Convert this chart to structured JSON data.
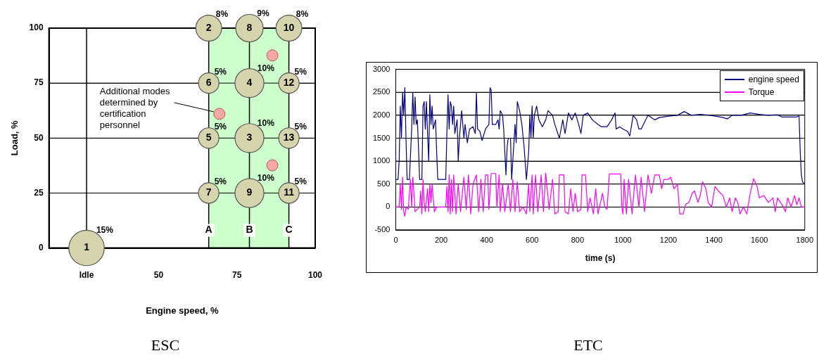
{
  "chart_data": [
    {
      "type": "bubble",
      "title": "ESC",
      "xlabel": "Engine speed, %",
      "ylabel": "Load, %",
      "xlim": [
        15,
        100
      ],
      "xticks": [
        {
          "value": 27,
          "label": "Idle"
        },
        50,
        75,
        100
      ],
      "ylim": [
        0,
        100
      ],
      "yticks": [
        0,
        25,
        50,
        75,
        100
      ],
      "grid": "y",
      "marker": "circle",
      "series": [
        {
          "type": "bubble",
          "color": "#d6d4ad",
          "x": [
            27,
            66,
            79,
            91.6,
            66,
            79,
            91.6,
            66,
            79,
            91.6,
            66,
            79,
            91.6
          ],
          "values": [
            0,
            100,
            100,
            100,
            75,
            75,
            75,
            50,
            50,
            50,
            25,
            25,
            25
          ],
          "sizes": [
            15,
            8,
            9,
            8,
            5,
            10,
            5,
            5,
            10,
            5,
            5,
            10,
            5
          ],
          "value_labels": [
            "15%",
            "8%",
            "9%",
            "8%",
            "5%",
            "10%",
            "5%",
            "5%",
            "10%",
            "5%",
            "5%",
            "10%",
            "5%"
          ]
        },
        {
          "type": "scatter",
          "color": "#f4a7a7",
          "x": [
            69.4,
            86.3,
            86.3
          ],
          "values": [
            61,
            87.6,
            37.6
          ]
        }
      ],
      "ref_lines": [
        {
          "axis": "x",
          "value": 27
        },
        {
          "axis": "x",
          "value": 66
        },
        {
          "axis": "x",
          "value": 79
        },
        {
          "axis": "x",
          "value": 91.6
        }
      ],
      "bands": [
        {
          "axis": "x",
          "from": 66,
          "to": 91.6,
          "color": "#ccffcc"
        }
      ],
      "annotations": [
        {
          "text": "Additional modes determined by certification personnel",
          "x": 69.4,
          "y": 61
        },
        {
          "text": "1",
          "x": 27,
          "y": 0
        },
        {
          "text": "2",
          "x": 66,
          "y": 100
        },
        {
          "text": "8",
          "x": 79,
          "y": 100
        },
        {
          "text": "10",
          "x": 91.6,
          "y": 100
        },
        {
          "text": "6",
          "x": 66,
          "y": 75
        },
        {
          "text": "4",
          "x": 79,
          "y": 75
        },
        {
          "text": "12",
          "x": 91.6,
          "y": 75
        },
        {
          "text": "5",
          "x": 66,
          "y": 50
        },
        {
          "text": "3",
          "x": 79,
          "y": 50
        },
        {
          "text": "13",
          "x": 91.6,
          "y": 50
        },
        {
          "text": "7",
          "x": 66,
          "y": 25
        },
        {
          "text": "9",
          "x": 79,
          "y": 25
        },
        {
          "text": "11",
          "x": 91.6,
          "y": 25
        },
        {
          "text": "A",
          "x": 66,
          "y": 8
        },
        {
          "text": "B",
          "x": 79,
          "y": 8
        },
        {
          "text": "C",
          "x": 91.6,
          "y": 8
        }
      ]
    },
    {
      "type": "line",
      "title": "ETC",
      "xlabel": "time (s)",
      "xlim": [
        0,
        1800
      ],
      "xticks": [
        0,
        200,
        400,
        600,
        800,
        1000,
        1200,
        1400,
        1600,
        1800
      ],
      "ylim": [
        -500,
        3000
      ],
      "yticks": [
        -500,
        0,
        500,
        1000,
        1500,
        2000,
        2500,
        3000
      ],
      "grid": "y",
      "legend": "top right",
      "marker": "none",
      "line_style": "solid",
      "series": [
        {
          "name": "engine speed",
          "color": "#000080",
          "x": [
            0,
            10,
            15,
            20,
            25,
            30,
            35,
            40,
            45,
            50,
            60,
            70,
            75,
            80,
            85,
            90,
            95,
            100,
            105,
            115,
            120,
            125,
            130,
            135,
            140,
            145,
            150,
            155,
            160,
            165,
            175,
            180,
            185,
            220,
            225,
            230,
            235,
            240,
            245,
            250,
            255,
            260,
            270,
            275,
            280,
            290,
            300,
            305,
            315,
            325,
            340,
            350,
            355,
            360,
            370,
            380,
            395,
            410,
            415,
            420,
            425,
            440,
            450,
            455,
            460,
            470,
            475,
            480,
            485,
            490,
            495,
            505,
            510,
            515,
            525,
            530,
            535,
            545,
            555,
            565,
            575,
            585,
            590,
            595,
            600,
            605,
            610,
            620,
            630,
            645,
            660,
            670,
            690,
            700,
            720,
            735,
            745,
            760,
            775,
            790,
            805,
            815,
            825,
            845,
            865,
            890,
            905,
            930,
            950,
            965,
            970,
            985,
            1000,
            1020,
            1030,
            1045,
            1060,
            1070,
            1080,
            1090,
            1110,
            1140,
            1160,
            1200,
            1240,
            1270,
            1300,
            1340,
            1380,
            1420,
            1440,
            1460,
            1480,
            1520,
            1560,
            1600,
            1640,
            1680,
            1700,
            1760,
            1775,
            1780,
            1785,
            1790,
            1800
          ],
          "values": [
            600,
            600,
            1000,
            2200,
            1500,
            2500,
            2000,
            2600,
            1500,
            600,
            600,
            1700,
            2500,
            1800,
            2400,
            1800,
            1900,
            1300,
            600,
            600,
            2200,
            2300,
            1700,
            2300,
            1600,
            1000,
            2450,
            1800,
            2200,
            1700,
            1900,
            1200,
            600,
            600,
            1600,
            2450,
            1700,
            2300,
            2200,
            1800,
            2200,
            1600,
            1900,
            1000,
            1500,
            2100,
            1500,
            1800,
            1400,
            1700,
            1750,
            1600,
            2500,
            1700,
            1650,
            1450,
            1700,
            1800,
            2600,
            2550,
            1800,
            1800,
            1900,
            1700,
            2100,
            2000,
            1700,
            1200,
            700,
            1300,
            1500,
            1500,
            600,
            1000,
            1800,
            1400,
            2300,
            2100,
            1800,
            1300,
            600,
            1200,
            2000,
            1500,
            2200,
            1500,
            2000,
            2200,
            1900,
            1750,
            1900,
            2100,
            2000,
            1800,
            1500,
            1900,
            1600,
            2050,
            1900,
            2050,
            1800,
            1600,
            2000,
            2050,
            1900,
            1800,
            1750,
            1750,
            1900,
            2050,
            1700,
            1750,
            1700,
            1650,
            1550,
            2000,
            1900,
            1700,
            1700,
            1800,
            2000,
            1900,
            1950,
            1980,
            2000,
            2080,
            2000,
            2020,
            2000,
            1970,
            1950,
            1920,
            2000,
            2000,
            2050,
            2020,
            2000,
            2010,
            1960,
            1960,
            1980,
            1200,
            700,
            550,
            500
          ]
        },
        {
          "name": "Torque",
          "color": "#ff00ff",
          "x": [
            0,
            15,
            20,
            25,
            30,
            35,
            40,
            45,
            55,
            65,
            70,
            75,
            80,
            85,
            95,
            105,
            110,
            115,
            120,
            125,
            130,
            140,
            145,
            150,
            155,
            160,
            170,
            180,
            200,
            220,
            225,
            230,
            235,
            240,
            245,
            250,
            255,
            265,
            275,
            285,
            300,
            310,
            320,
            330,
            340,
            355,
            365,
            375,
            385,
            395,
            405,
            410,
            420,
            440,
            445,
            455,
            460,
            470,
            480,
            495,
            505,
            515,
            525,
            535,
            545,
            560,
            575,
            585,
            590,
            600,
            605,
            615,
            625,
            640,
            650,
            660,
            675,
            690,
            700,
            715,
            720,
            740,
            745,
            760,
            770,
            780,
            790,
            800,
            815,
            820,
            835,
            845,
            855,
            870,
            880,
            890,
            910,
            920,
            930,
            940,
            990,
            995,
            1000,
            1005,
            1015,
            1025,
            1040,
            1055,
            1070,
            1080,
            1095,
            1110,
            1125,
            1140,
            1160,
            1170,
            1180,
            1200,
            1210,
            1225,
            1240,
            1250,
            1265,
            1275,
            1290,
            1305,
            1315,
            1330,
            1340,
            1350,
            1365,
            1375,
            1390,
            1405,
            1420,
            1440,
            1455,
            1470,
            1480,
            1495,
            1505,
            1515,
            1530,
            1545,
            1560,
            1575,
            1590,
            1600,
            1620,
            1640,
            1660,
            1670,
            1680,
            1700,
            1715,
            1725,
            1740,
            1755,
            1765,
            1775,
            1785,
            1800
          ],
          "values": [
            0,
            0,
            500,
            -50,
            650,
            -100,
            -200,
            0,
            -50,
            600,
            0,
            650,
            300,
            -100,
            -50,
            0,
            350,
            -150,
            600,
            100,
            -100,
            400,
            -100,
            500,
            100,
            500,
            -100,
            0,
            0,
            0,
            450,
            -100,
            700,
            -150,
            600,
            -100,
            700,
            -150,
            500,
            -100,
            650,
            -50,
            700,
            -150,
            500,
            700,
            -100,
            600,
            -100,
            700,
            700,
            -50,
            730,
            730,
            0,
            700,
            -100,
            500,
            -100,
            500,
            -100,
            600,
            -100,
            550,
            -100,
            0,
            -150,
            500,
            -100,
            700,
            -150,
            700,
            -100,
            700,
            -100,
            740,
            -50,
            600,
            -150,
            -100,
            700,
            700,
            -100,
            -150,
            400,
            -100,
            300,
            -100,
            -50,
            700,
            700,
            -100,
            200,
            -150,
            400,
            -150,
            300,
            0,
            -50,
            720,
            720,
            0,
            -150,
            600,
            -150,
            600,
            -150,
            700,
            0,
            650,
            -100,
            700,
            300,
            700,
            700,
            400,
            600,
            600,
            650,
            400,
            500,
            -150,
            -150,
            50,
            100,
            300,
            350,
            100,
            250,
            550,
            400,
            100,
            0,
            450,
            350,
            250,
            0,
            200,
            -100,
            200,
            100,
            -150,
            0,
            -150,
            300,
            620,
            450,
            200,
            250,
            100,
            200,
            -100,
            200,
            50,
            -100,
            200,
            0,
            250,
            50,
            200,
            0,
            0
          ]
        }
      ]
    }
  ]
}
